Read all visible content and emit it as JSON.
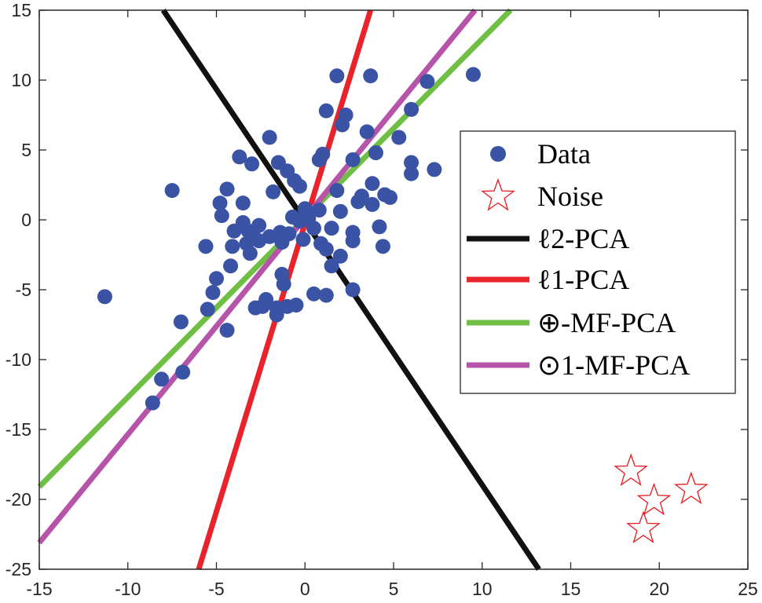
{
  "chart_data": {
    "type": "scatter",
    "title": "",
    "xlabel": "",
    "ylabel": "",
    "xlim": [
      -15,
      25
    ],
    "ylim": [
      -25,
      15
    ],
    "grid": false,
    "legend_placement": "right",
    "x_ticks": [
      -15,
      -10,
      -5,
      0,
      5,
      10,
      15,
      20,
      25
    ],
    "y_ticks": [
      15,
      10,
      5,
      0,
      -5,
      -10,
      -15,
      -20,
      -25
    ],
    "x_tick_labels": [
      "-15",
      "-10",
      "-5",
      "0",
      "5",
      "10",
      "15",
      "20",
      "25"
    ],
    "y_tick_labels": [
      "15",
      "10",
      "5",
      "0",
      "-5",
      "-10",
      "-15",
      "-20",
      "-25"
    ],
    "colors": {
      "data": "#3a53a4",
      "noise": "#e41a1c",
      "l2pca": "#111111",
      "l1pca": "#e8232a",
      "mf_pca": "#6fbf44",
      "mf1_pca": "#b554a8"
    },
    "data_points": [
      [
        -11.3,
        -5.5
      ],
      [
        -8.6,
        -13.1
      ],
      [
        -8.1,
        -11.4
      ],
      [
        -7.5,
        2.1
      ],
      [
        -7.0,
        -7.3
      ],
      [
        -6.9,
        -10.9
      ],
      [
        -5.6,
        -1.9
      ],
      [
        -5.5,
        -6.4
      ],
      [
        -5.2,
        -5.2
      ],
      [
        -5.0,
        -4.2
      ],
      [
        -4.8,
        1.2
      ],
      [
        -4.7,
        0.3
      ],
      [
        -4.4,
        -7.9
      ],
      [
        -4.4,
        2.2
      ],
      [
        -4.2,
        -3.3
      ],
      [
        -4.0,
        -0.8
      ],
      [
        -4.1,
        -1.9
      ],
      [
        -3.7,
        4.5
      ],
      [
        -3.5,
        1.2
      ],
      [
        -3.5,
        -0.2
      ],
      [
        -3.3,
        -1.7
      ],
      [
        -3.2,
        -0.8
      ],
      [
        -3.1,
        -2.4
      ],
      [
        -3.0,
        4.0
      ],
      [
        -2.9,
        -1.2
      ],
      [
        -2.8,
        -6.3
      ],
      [
        -2.6,
        -0.4
      ],
      [
        -2.6,
        -1.5
      ],
      [
        -2.4,
        -6.2
      ],
      [
        -2.2,
        -5.7
      ],
      [
        -2.0,
        5.9
      ],
      [
        -2.0,
        -1.2
      ],
      [
        -1.8,
        2.0
      ],
      [
        -1.6,
        -6.3
      ],
      [
        -1.6,
        -6.8
      ],
      [
        -1.5,
        4.1
      ],
      [
        -1.4,
        -0.9
      ],
      [
        -1.3,
        -1.6
      ],
      [
        -1.3,
        -3.9
      ],
      [
        -1.2,
        -4.6
      ],
      [
        -1.0,
        3.5
      ],
      [
        -1.0,
        -6.2
      ],
      [
        -0.9,
        -1.0
      ],
      [
        -0.7,
        0.2
      ],
      [
        -0.6,
        2.8
      ],
      [
        -0.5,
        -6.1
      ],
      [
        -0.3,
        2.4
      ],
      [
        -0.3,
        -0.1
      ],
      [
        -0.1,
        -1.4
      ],
      [
        0.0,
        0.8
      ],
      [
        0.2,
        0.1
      ],
      [
        0.5,
        -5.3
      ],
      [
        0.5,
        -0.6
      ],
      [
        0.8,
        4.3
      ],
      [
        0.8,
        0.7
      ],
      [
        0.9,
        -1.7
      ],
      [
        1.0,
        4.7
      ],
      [
        1.2,
        7.8
      ],
      [
        1.2,
        -2.1
      ],
      [
        1.2,
        -5.4
      ],
      [
        1.5,
        -0.6
      ],
      [
        1.5,
        -3.3
      ],
      [
        1.8,
        2.1
      ],
      [
        1.8,
        10.3
      ],
      [
        2.0,
        0.6
      ],
      [
        2.0,
        -2.6
      ],
      [
        2.1,
        6.8
      ],
      [
        2.3,
        7.5
      ],
      [
        2.7,
        4.3
      ],
      [
        2.7,
        -5.0
      ],
      [
        2.7,
        -0.9
      ],
      [
        2.7,
        -1.5
      ],
      [
        3.0,
        1.3
      ],
      [
        3.2,
        1.7
      ],
      [
        3.5,
        6.3
      ],
      [
        3.7,
        10.3
      ],
      [
        3.8,
        1.1
      ],
      [
        3.8,
        2.6
      ],
      [
        4.0,
        4.8
      ],
      [
        4.2,
        -0.5
      ],
      [
        4.4,
        -1.9
      ],
      [
        4.5,
        1.8
      ],
      [
        4.8,
        1.6
      ],
      [
        5.3,
        5.9
      ],
      [
        6.0,
        7.9
      ],
      [
        6.0,
        4.1
      ],
      [
        6.0,
        3.3
      ],
      [
        6.9,
        9.9
      ],
      [
        7.3,
        3.6
      ],
      [
        9.5,
        10.4
      ]
    ],
    "noise_points": [
      [
        18.4,
        -18.0
      ],
      [
        19.7,
        -20.1
      ],
      [
        21.8,
        -19.3
      ],
      [
        19.1,
        -22.1
      ]
    ],
    "series": [
      {
        "name": "Data",
        "type": "scatter",
        "points_ref": "data_points"
      },
      {
        "name": "Noise",
        "type": "scatter",
        "points_ref": "noise_points"
      },
      {
        "name": "ℓ2-PCA",
        "type": "line",
        "points": [
          [
            -8.0,
            15.0
          ],
          [
            13.2,
            -25.0
          ]
        ]
      },
      {
        "name": "ℓ1-PCA",
        "type": "line",
        "points": [
          [
            -6.0,
            -25.0
          ],
          [
            3.7,
            15.0
          ]
        ]
      },
      {
        "name": "⊕-MF-PCA",
        "type": "line",
        "points": [
          [
            -15.0,
            -19.1
          ],
          [
            11.6,
            15.0
          ]
        ]
      },
      {
        "name": "⊙1-MF-PCA",
        "type": "line",
        "points": [
          [
            -15.0,
            -23.1
          ],
          [
            9.6,
            15.0
          ]
        ]
      }
    ]
  },
  "legend": {
    "items": [
      {
        "symbol": "dot",
        "label": "Data"
      },
      {
        "symbol": "star",
        "label": "Noise"
      },
      {
        "symbol": "line",
        "color_key": "l2pca",
        "label": "ℓ2-PCA"
      },
      {
        "symbol": "line",
        "color_key": "l1pca",
        "label": "ℓ1-PCA"
      },
      {
        "symbol": "line",
        "color_key": "mf_pca",
        "label": "⊕-MF-PCA"
      },
      {
        "symbol": "line",
        "color_key": "mf1_pca",
        "label": "⊙1-MF-PCA"
      }
    ]
  }
}
